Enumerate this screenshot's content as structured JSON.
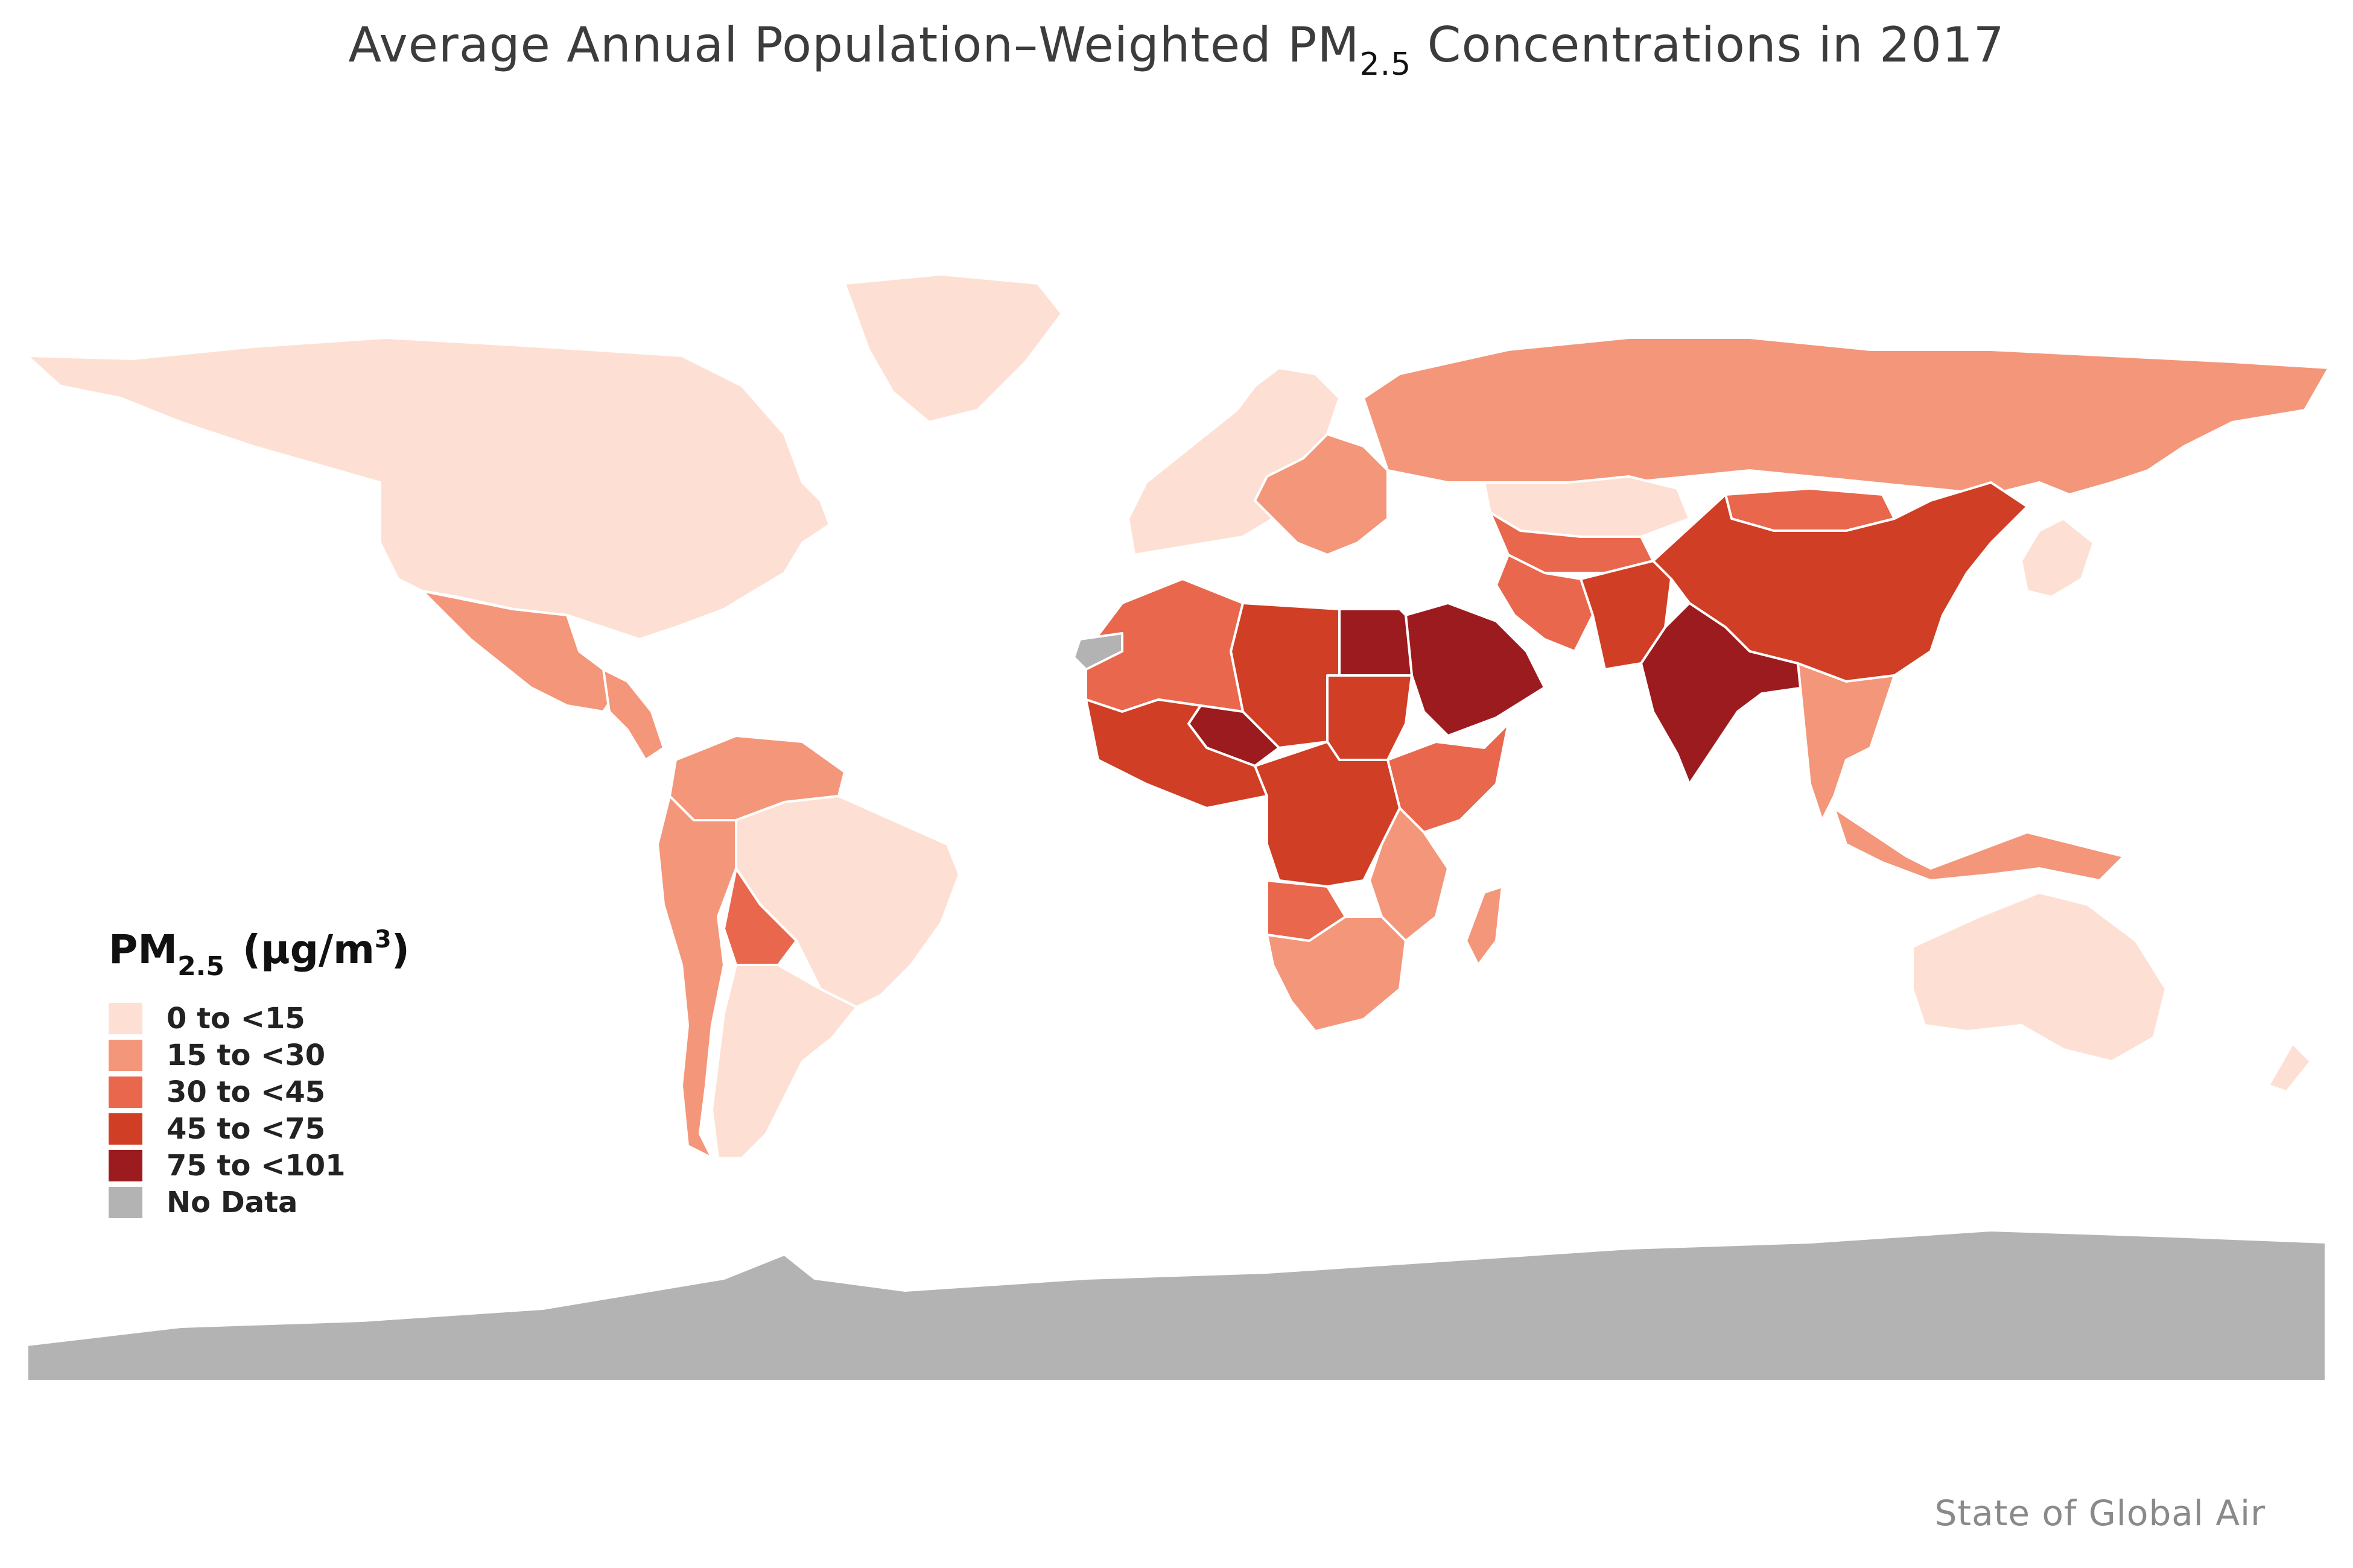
{
  "title": {
    "prefix": "Average Annual Population–Weighted PM",
    "subscript": "2.5",
    "suffix": " Concentrations in 2017"
  },
  "legend": {
    "title_main": "PM",
    "title_sub": "2.5",
    "title_units_open": "(μg/m",
    "title_units_sup": "3",
    "title_units_close": ")",
    "items": [
      {
        "label": "0 to <15",
        "color": "#fde0d3"
      },
      {
        "label": "15 to <30",
        "color": "#f4967a"
      },
      {
        "label": "30 to <45",
        "color": "#e8674d"
      },
      {
        "label": "45 to <75",
        "color": "#cf3e25"
      },
      {
        "label": "75 to <101",
        "color": "#9c1b1f"
      },
      {
        "label": "No Data",
        "color": "#b3b3b3"
      }
    ]
  },
  "credit": "State of Global Air",
  "regions": [
    {
      "name": "north-america",
      "category": 0
    },
    {
      "name": "greenland",
      "category": 0
    },
    {
      "name": "mexico",
      "category": 1
    },
    {
      "name": "central-america",
      "category": 1
    },
    {
      "name": "brazil",
      "category": 0
    },
    {
      "name": "argentina-chile",
      "category": 0
    },
    {
      "name": "andes",
      "category": 1
    },
    {
      "name": "bolivia",
      "category": 2
    },
    {
      "name": "venezuela-colombia",
      "category": 1
    },
    {
      "name": "europe",
      "category": 0
    },
    {
      "name": "eastern-europe",
      "category": 1
    },
    {
      "name": "russia",
      "category": 1
    },
    {
      "name": "kazakhstan",
      "category": 0
    },
    {
      "name": "central-asia",
      "category": 2
    },
    {
      "name": "iran",
      "category": 2
    },
    {
      "name": "afghanistan-pakistan",
      "category": 3
    },
    {
      "name": "china",
      "category": 3
    },
    {
      "name": "mongolia",
      "category": 2
    },
    {
      "name": "india",
      "category": 4
    },
    {
      "name": "southeast-asia",
      "category": 1
    },
    {
      "name": "indonesia",
      "category": 1
    },
    {
      "name": "japan-korea",
      "category": 0
    },
    {
      "name": "arabia",
      "category": 4
    },
    {
      "name": "egypt",
      "category": 4
    },
    {
      "name": "libya-chad",
      "category": 3
    },
    {
      "name": "algeria-mali",
      "category": 2
    },
    {
      "name": "western-sahara",
      "category": 5
    },
    {
      "name": "niger",
      "category": 4
    },
    {
      "name": "nigeria-sahel",
      "category": 3
    },
    {
      "name": "sudan",
      "category": 3
    },
    {
      "name": "ethiopia-horn",
      "category": 2
    },
    {
      "name": "central-africa",
      "category": 3
    },
    {
      "name": "east-africa",
      "category": 1
    },
    {
      "name": "southern-africa",
      "category": 1
    },
    {
      "name": "angola",
      "category": 2
    },
    {
      "name": "madagascar",
      "category": 1
    },
    {
      "name": "australia",
      "category": 0
    },
    {
      "name": "new-zealand",
      "category": 0
    },
    {
      "name": "antarctica",
      "category": 5
    }
  ]
}
